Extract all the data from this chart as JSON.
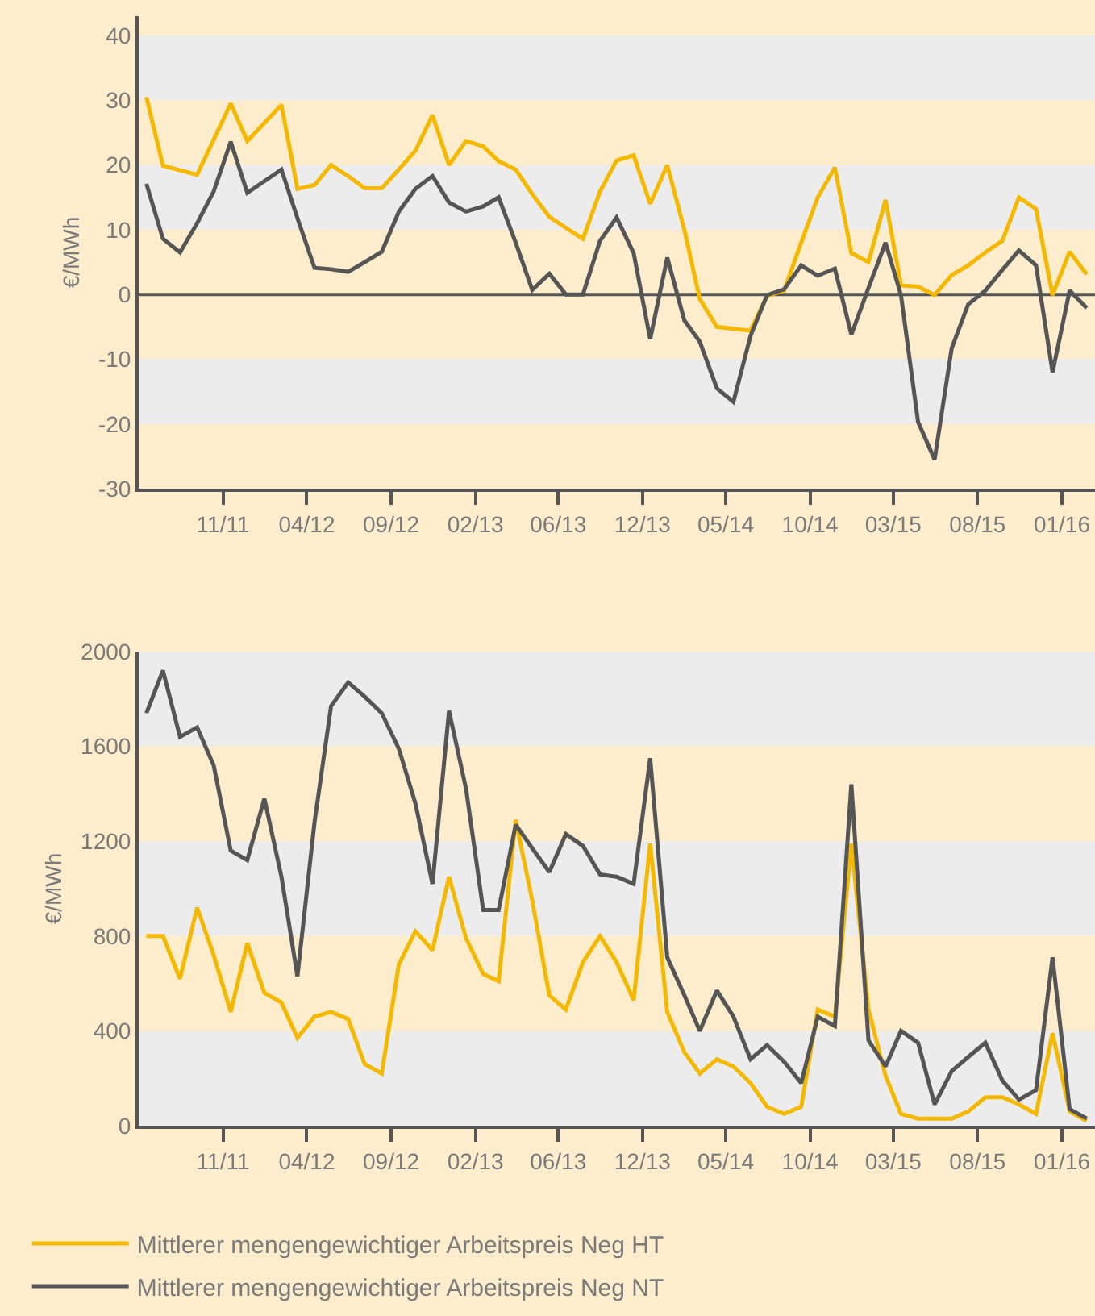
{
  "chart_data": [
    {
      "type": "line",
      "ylabel": "€/MWh",
      "grid": false,
      "x": [
        "2011-06-15",
        "2011-07-15",
        "2011-08-15",
        "2011-09-15",
        "2011-10-15",
        "2011-11-15",
        "2011-12-15",
        "2012-01-15",
        "2012-02-15",
        "2012-03-15",
        "2012-04-15",
        "2012-05-15",
        "2012-06-15",
        "2012-07-15",
        "2012-08-15",
        "2012-09-15",
        "2012-10-15",
        "2012-11-15",
        "2012-12-15",
        "2013-01-15",
        "2013-02-15",
        "2013-03-15",
        "2013-04-15",
        "2013-05-15",
        "2013-06-15",
        "2013-07-15",
        "2013-08-15",
        "2013-09-15",
        "2013-10-15",
        "2013-11-15",
        "2013-12-15",
        "2014-01-15",
        "2014-02-15",
        "2014-03-15",
        "2014-04-15",
        "2014-05-15",
        "2014-06-15",
        "2014-07-15",
        "2014-08-15",
        "2014-09-15",
        "2014-10-15",
        "2014-11-15",
        "2014-12-15",
        "2015-01-15",
        "2015-02-15",
        "2015-03-15",
        "2015-04-15",
        "2015-05-15",
        "2015-06-15",
        "2015-07-15",
        "2015-08-15",
        "2015-09-15",
        "2015-10-15",
        "2015-11-15",
        "2015-12-15",
        "2016-01-15",
        "2016-02-15"
      ],
      "xlim": [
        "2011-06-01",
        "2016-03-01"
      ],
      "xticks": [
        {
          "value": "2011-11-01",
          "label": "11/11"
        },
        {
          "value": "2012-04-01",
          "label": "04/12"
        },
        {
          "value": "2012-09-01",
          "label": "09/12"
        },
        {
          "value": "2013-02-01",
          "label": "02/13"
        },
        {
          "value": "2013-07-01",
          "label": "06/13"
        },
        {
          "value": "2013-12-01",
          "label": "12/13"
        },
        {
          "value": "2014-05-01",
          "label": "05/14"
        },
        {
          "value": "2014-10-01",
          "label": "10/14"
        },
        {
          "value": "2015-03-01",
          "label": "03/15"
        },
        {
          "value": "2015-08-01",
          "label": "08/15"
        },
        {
          "value": "2016-01-01",
          "label": "01/16"
        }
      ],
      "ylim": [
        -30,
        43
      ],
      "yticks": [
        -30,
        -20,
        -10,
        0,
        10,
        20,
        30,
        40
      ],
      "bands": [
        {
          "axis": "y",
          "from": 30,
          "to": 40,
          "color": "#ececec"
        },
        {
          "axis": "y",
          "from": 10,
          "to": 20,
          "color": "#ececec"
        },
        {
          "axis": "y",
          "from": -10,
          "to": -20,
          "color": "#ececec"
        }
      ],
      "ref_lines": [
        {
          "axis": "y",
          "value": 0,
          "color": "#555555"
        }
      ],
      "series": [
        {
          "color": "#f5b800",
          "values": [
            30.5,
            19.9,
            19.2,
            18.5,
            23.9,
            29.5,
            23.7,
            26.5,
            29.3,
            16.3,
            16.9,
            20,
            18.3,
            16.4,
            16.4,
            19.3,
            22.2,
            27.7,
            20,
            23.7,
            22.9,
            20.6,
            19.3,
            15.5,
            12,
            10.3,
            8.6,
            15.9,
            20.7,
            21.5,
            14,
            20,
            10,
            -0.7,
            -5,
            -5.3,
            -5.6,
            -0.2,
            0.6,
            8,
            15,
            19.6,
            6.4,
            5,
            14.6,
            1.4,
            1.2,
            -0.1,
            3,
            4.5,
            6.5,
            8.3,
            15,
            13.2,
            -0.1,
            6.6,
            3.1
          ]
        },
        {
          "color": "#555555",
          "values": [
            17.1,
            8.6,
            6.5,
            11,
            15.9,
            23.6,
            15.7,
            17.5,
            19.3,
            11.8,
            4.1,
            3.9,
            3.5,
            5,
            6.6,
            12.8,
            16.3,
            18.3,
            14.2,
            12.8,
            13.6,
            15,
            8,
            0.7,
            3.2,
            0,
            0,
            8.3,
            11.9,
            6.4,
            -6.9,
            5.7,
            -4,
            -7.3,
            -14.5,
            -16.6,
            -6.4,
            -0.1,
            0.8,
            4.5,
            2.9,
            4,
            -6.2,
            1,
            8,
            -0.1,
            -19.7,
            -25.5,
            -8.3,
            -1.5,
            0.6,
            3.8,
            6.8,
            4.5,
            -12,
            0.6,
            -2.1
          ]
        }
      ]
    },
    {
      "type": "line",
      "ylabel": "€/MWh",
      "grid": false,
      "legend": "bottom",
      "x": [
        "2011-06-15",
        "2011-07-15",
        "2011-08-15",
        "2011-09-15",
        "2011-10-15",
        "2011-11-15",
        "2011-12-15",
        "2012-01-15",
        "2012-02-15",
        "2012-03-15",
        "2012-04-15",
        "2012-05-15",
        "2012-06-15",
        "2012-07-15",
        "2012-08-15",
        "2012-09-15",
        "2012-10-15",
        "2012-11-15",
        "2012-12-15",
        "2013-01-15",
        "2013-02-15",
        "2013-03-15",
        "2013-04-15",
        "2013-05-15",
        "2013-06-15",
        "2013-07-15",
        "2013-08-15",
        "2013-09-15",
        "2013-10-15",
        "2013-11-15",
        "2013-12-15",
        "2014-01-15",
        "2014-02-15",
        "2014-03-15",
        "2014-04-15",
        "2014-05-15",
        "2014-06-15",
        "2014-07-15",
        "2014-08-15",
        "2014-09-15",
        "2014-10-15",
        "2014-11-15",
        "2014-12-15",
        "2015-01-15",
        "2015-02-15",
        "2015-03-15",
        "2015-04-15",
        "2015-05-15",
        "2015-06-15",
        "2015-07-15",
        "2015-08-15",
        "2015-09-15",
        "2015-10-15",
        "2015-11-15",
        "2015-12-15",
        "2016-01-15",
        "2016-02-15"
      ],
      "xlim": [
        "2011-06-01",
        "2016-03-01"
      ],
      "xticks": [
        {
          "value": "2011-11-01",
          "label": "11/11"
        },
        {
          "value": "2012-04-01",
          "label": "04/12"
        },
        {
          "value": "2012-09-01",
          "label": "09/12"
        },
        {
          "value": "2013-02-01",
          "label": "02/13"
        },
        {
          "value": "2013-07-01",
          "label": "06/13"
        },
        {
          "value": "2013-12-01",
          "label": "12/13"
        },
        {
          "value": "2014-05-01",
          "label": "05/14"
        },
        {
          "value": "2014-10-01",
          "label": "10/14"
        },
        {
          "value": "2015-03-01",
          "label": "03/15"
        },
        {
          "value": "2015-08-01",
          "label": "08/15"
        },
        {
          "value": "2016-01-01",
          "label": "01/16"
        }
      ],
      "ylim": [
        0,
        2000
      ],
      "yticks": [
        0,
        400,
        800,
        1200,
        1600,
        2000
      ],
      "bands": [
        {
          "axis": "y",
          "from": 1600,
          "to": 2000,
          "color": "#ececec"
        },
        {
          "axis": "y",
          "from": 800,
          "to": 1200,
          "color": "#ececec"
        },
        {
          "axis": "y",
          "from": 0,
          "to": 400,
          "color": "#ececec"
        }
      ],
      "series": [
        {
          "name": "Mittlerer mengengewichtiger Arbeitspreis Neg HT",
          "color": "#f5b800",
          "values": [
            800,
            800,
            620,
            920,
            720,
            480,
            770,
            560,
            520,
            370,
            460,
            480,
            450,
            260,
            220,
            680,
            820,
            740,
            1050,
            790,
            640,
            610,
            1290,
            950,
            550,
            490,
            690,
            800,
            690,
            530,
            1190,
            480,
            310,
            220,
            280,
            250,
            180,
            80,
            50,
            80,
            490,
            460,
            1190,
            490,
            210,
            50,
            30,
            30,
            30,
            60,
            120,
            120,
            90,
            50,
            390,
            60,
            20
          ]
        },
        {
          "name": "Mittlerer mengengewichtiger Arbeitspreis Neg NT",
          "color": "#555555",
          "values": [
            1740,
            1920,
            1640,
            1680,
            1520,
            1160,
            1120,
            1380,
            1050,
            630,
            1280,
            1770,
            1870,
            1810,
            1740,
            1590,
            1360,
            1020,
            1750,
            1420,
            910,
            910,
            1270,
            1170,
            1070,
            1230,
            1180,
            1060,
            1050,
            1020,
            1550,
            710,
            550,
            400,
            570,
            460,
            280,
            340,
            270,
            180,
            460,
            420,
            1440,
            360,
            250,
            400,
            350,
            90,
            230,
            290,
            350,
            190,
            110,
            150,
            710,
            70,
            30
          ]
        }
      ]
    }
  ]
}
